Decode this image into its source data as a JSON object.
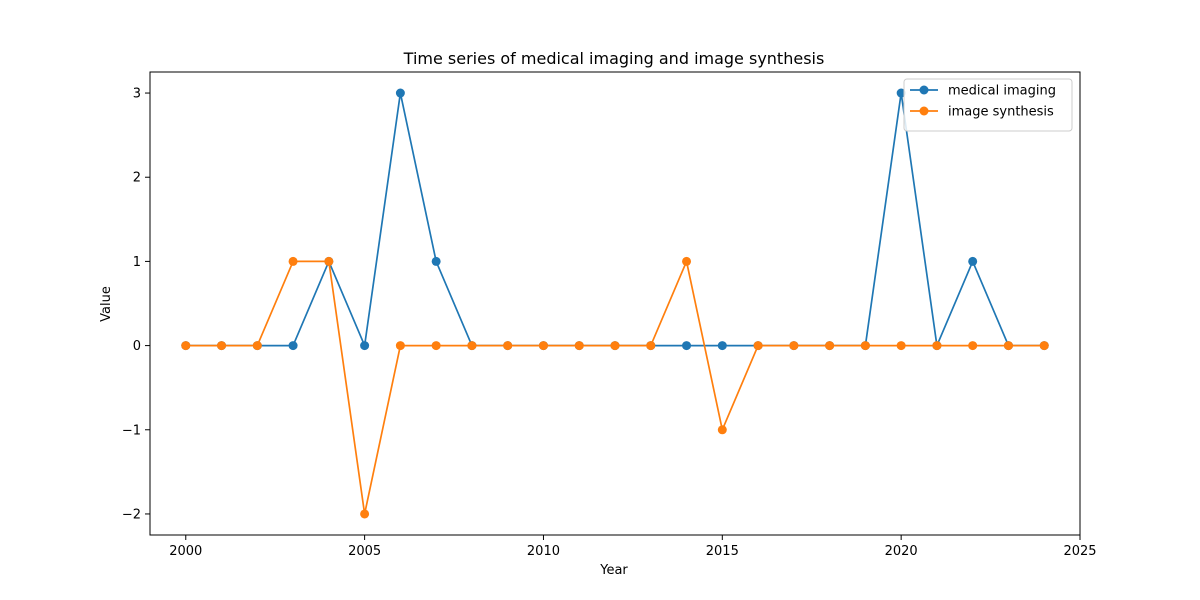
{
  "chart_data": {
    "type": "line",
    "title": "Time series of medical imaging and image synthesis",
    "xlabel": "Year",
    "ylabel": "Value",
    "x": [
      2000,
      2001,
      2002,
      2003,
      2004,
      2005,
      2006,
      2007,
      2008,
      2009,
      2010,
      2011,
      2012,
      2013,
      2014,
      2015,
      2016,
      2017,
      2018,
      2019,
      2020,
      2021,
      2022,
      2023,
      2024
    ],
    "xlim": [
      1999,
      2025
    ],
    "ylim": [
      -2.25,
      3.25
    ],
    "xticks": [
      2000,
      2005,
      2010,
      2015,
      2020,
      2025
    ],
    "yticks": [
      -2,
      -1,
      0,
      1,
      2,
      3
    ],
    "xtick_labels": [
      "2000",
      "2005",
      "2010",
      "2015",
      "2020",
      "2025"
    ],
    "ytick_labels": [
      "−2",
      "−1",
      "0",
      "1",
      "2",
      "3"
    ],
    "grid": false,
    "legend_position": "top-right",
    "markers": true,
    "series": [
      {
        "name": "medical imaging",
        "color": "#1f77b4",
        "values": [
          0,
          0,
          0,
          0,
          1,
          0,
          3,
          1,
          0,
          0,
          0,
          0,
          0,
          0,
          0,
          0,
          0,
          0,
          0,
          0,
          3,
          0,
          1,
          0,
          0
        ]
      },
      {
        "name": "image synthesis",
        "color": "#ff7f0e",
        "values": [
          0,
          0,
          0,
          1,
          1,
          -2,
          0,
          0,
          0,
          0,
          0,
          0,
          0,
          0,
          1,
          -1,
          0,
          0,
          0,
          0,
          0,
          0,
          0,
          0,
          0
        ]
      }
    ]
  }
}
